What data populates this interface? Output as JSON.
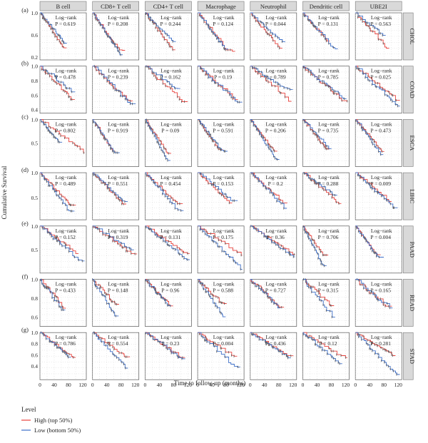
{
  "figure": {
    "y_axis_title": "Cumulative Survival",
    "x_axis_title": "Time to follow-up (months)",
    "legend": {
      "title": "Level",
      "items": [
        {
          "label": "High (top 50%)",
          "color": "#e8413c"
        },
        {
          "label": "Low (bottom 50%)",
          "color": "#3c6ec8"
        }
      ]
    }
  },
  "chart_data": {
    "type": "line",
    "panel_grid": "7 columns x 7 rows of Kaplan-Meier survival curves",
    "columns": [
      "B cell",
      "CD8+ T cell",
      "CD4+ T cell",
      "Macrophage",
      "Neutrophil",
      "Dendritic cell",
      "UBE2I"
    ],
    "rows": [
      {
        "letter": "(a)",
        "cancer": "CHOL",
        "ylim": [
          0.15,
          1.0
        ],
        "yticks": [
          "1.0",
          "0.6",
          "0.2"
        ],
        "ytick_values": [
          1.0,
          0.6,
          0.2
        ],
        "pvalues": [
          "P = 0.619",
          "P = 0.208",
          "P = 0.244",
          "P = 0.124",
          "P = 0.044",
          "P = 0.131",
          "P = 0.563"
        ]
      },
      {
        "letter": "(b)",
        "cancer": "COAD",
        "ylim": [
          0.35,
          1.0
        ],
        "yticks": [
          "1.0",
          "0.8",
          "0.6",
          "0.4"
        ],
        "ytick_values": [
          1.0,
          0.8,
          0.6,
          0.4
        ],
        "pvalues": [
          "P = 0.478",
          "P = 0.239",
          "P = 0.162",
          "P = 0.19",
          "P = 0.789",
          "P = 0.785",
          "P = 0.025"
        ]
      },
      {
        "letter": "(c)",
        "cancer": "ESCA",
        "ylim": [
          0.0,
          1.0
        ],
        "yticks": [
          "1.0",
          "0.5"
        ],
        "ytick_values": [
          1.0,
          0.5
        ],
        "pvalues": [
          "P = 0.802",
          "P = 0.919",
          "P = 0.09",
          "P = 0.591",
          "P = 0.206",
          "P = 0.735",
          "P = 0.473"
        ]
      },
      {
        "letter": "(d)",
        "cancer": "LIHC",
        "ylim": [
          0.05,
          1.0
        ],
        "yticks": [
          "1.0",
          "0.5"
        ],
        "ytick_values": [
          1.0,
          0.5
        ],
        "pvalues": [
          "P = 0.489",
          "P = 0.551",
          "P = 0.454",
          "P = 0.153",
          "P = 0.2",
          "P = 0.288",
          "P = 0.009"
        ]
      },
      {
        "letter": "(e)",
        "cancer": "PAAD",
        "ylim": [
          0.0,
          1.0
        ],
        "yticks": [
          "1.0",
          "0.5"
        ],
        "ytick_values": [
          1.0,
          0.5
        ],
        "pvalues": [
          "P = 0.152",
          "P = 0.319",
          "P = 0.131",
          "P = 0.175",
          "P = 0.36",
          "P = 0.706",
          "P = 0.004"
        ]
      },
      {
        "letter": "(f)",
        "cancer": "READ",
        "ylim": [
          0.5,
          1.0
        ],
        "yticks": [
          "1.0",
          "0.8",
          "0.6"
        ],
        "ytick_values": [
          1.0,
          0.8,
          0.6
        ],
        "pvalues": [
          "P = 0.433",
          "P = 0.148",
          "P = 0.96",
          "P = 0.588",
          "P = 0.727",
          "P = 0.315",
          "P = 0.165"
        ]
      },
      {
        "letter": "(g)",
        "cancer": "STAD",
        "ylim": [
          0.15,
          1.0
        ],
        "yticks": [
          "1.0",
          "0.8",
          "0.6",
          "0.4"
        ],
        "ytick_values": [
          1.0,
          0.8,
          0.6,
          0.4
        ],
        "pvalues": [
          "P = 0.786",
          "P = 0.554",
          "P = 0.23",
          "P = 0.004",
          "P = 0.436",
          "P = 0.12",
          "P = 0.281"
        ]
      }
    ],
    "test_label": "Log−rank",
    "x_ticks": [
      "0",
      "40",
      "80",
      "120"
    ],
    "x_tick_values": [
      0,
      40,
      80,
      120
    ],
    "xlim": [
      0,
      130
    ],
    "series": [
      {
        "name": "High (top 50%)",
        "color": "#e8413c"
      },
      {
        "name": "Low (bottom 50%)",
        "color": "#3c6ec8"
      }
    ],
    "censor_color": "#666666",
    "grid": "dotted"
  }
}
